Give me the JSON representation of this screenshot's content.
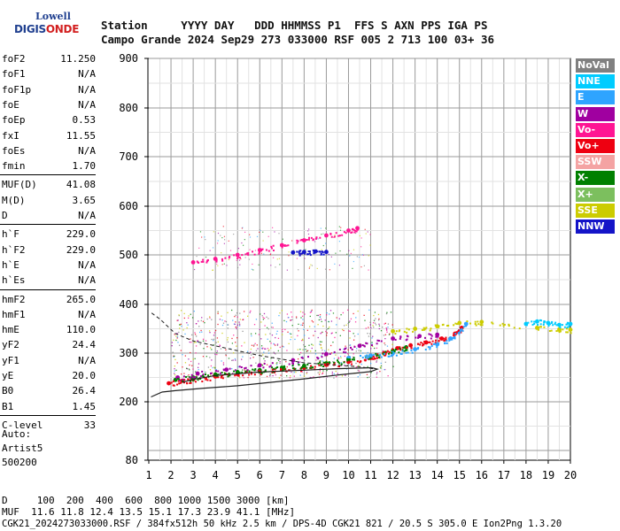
{
  "logo": {
    "top": "Lowell",
    "main_a": "DIGIS",
    "main_b": "ONDE"
  },
  "header": {
    "row1": "Station     YYYY DAY   DDD HHMMSS P1  FFS S AXN PPS IGA PS",
    "row2": "Campo Grande 2024 Sep29 273 033000 RSF 005 2 713 100 03+ 36"
  },
  "params": [
    {
      "label": "foF2",
      "value": "11.250"
    },
    {
      "label": "foF1",
      "value": "N/A"
    },
    {
      "label": "foF1p",
      "value": "N/A"
    },
    {
      "label": "foE",
      "value": "N/A"
    },
    {
      "label": "foEp",
      "value": "0.53"
    },
    {
      "label": "fxI",
      "value": "11.55"
    },
    {
      "label": "foEs",
      "value": "N/A"
    },
    {
      "label": "fmin",
      "value": "1.70"
    },
    {
      "label": "MUF(D)",
      "value": "41.08"
    },
    {
      "label": "M(D)",
      "value": "3.65"
    },
    {
      "label": "D",
      "value": "N/A"
    },
    {
      "label": "h`F",
      "value": "229.0"
    },
    {
      "label": "h`F2",
      "value": "229.0"
    },
    {
      "label": "h`E",
      "value": "N/A"
    },
    {
      "label": "h`Es",
      "value": "N/A"
    },
    {
      "label": "hmF2",
      "value": "265.0"
    },
    {
      "label": "hmF1",
      "value": "N/A"
    },
    {
      "label": "hmE",
      "value": "110.0"
    },
    {
      "label": "yF2",
      "value": "24.4"
    },
    {
      "label": "yF1",
      "value": "N/A"
    },
    {
      "label": "yE",
      "value": "20.0"
    },
    {
      "label": "B0",
      "value": "26.4"
    },
    {
      "label": "B1",
      "value": "1.45"
    },
    {
      "label": "C-level",
      "value": "33"
    }
  ],
  "autoscale": {
    "line1": "Auto:",
    "line2": "Artist5",
    "line3": "500200"
  },
  "legend": [
    {
      "label": "NoVal",
      "color": "#808080"
    },
    {
      "label": "NNE",
      "color": "#00ccff"
    },
    {
      "label": "E",
      "color": "#2ea4ff"
    },
    {
      "label": "W",
      "color": "#a000a0"
    },
    {
      "label": "Vo-",
      "color": "#ff1493"
    },
    {
      "label": "Vo+",
      "color": "#ee0011"
    },
    {
      "label": "SSW",
      "color": "#f4a3a3"
    },
    {
      "label": "X-",
      "color": "#008000"
    },
    {
      "label": "X+",
      "color": "#7cbf5e"
    },
    {
      "label": "SSE",
      "color": "#cccc00"
    },
    {
      "label": "NNW",
      "color": "#1414c8"
    }
  ],
  "footer": {
    "line1": "D     100  200  400  600  800 1000 1500 3000 [km]",
    "line2": "MUF  11.6 11.8 12.4 13.5 15.1 17.3 23.9 41.1 [MHz]",
    "line3": "CGK21_2024273033000.RSF / 384fx512h 50 kHz 2.5 km / DPS-4D CGK21 821 / 20.5 S 305.0 E Ion2Png 1.3.20"
  },
  "chart_data": {
    "type": "scatter",
    "xlim": [
      1,
      20
    ],
    "ylim": [
      80,
      900
    ],
    "x_ticks": [
      "1",
      "2",
      "3",
      "4",
      "5",
      "6",
      "7",
      "8",
      "9",
      "10",
      "11",
      "12",
      "13",
      "14",
      "15",
      "16",
      "17",
      "18",
      "19",
      "20"
    ],
    "y_ticks": [
      "80",
      "200",
      "300",
      "400",
      "500",
      "600",
      "700",
      "800",
      "900"
    ],
    "y_tick_values": [
      80,
      200,
      300,
      400,
      500,
      600,
      700,
      800,
      900
    ],
    "grid": true,
    "traces": [
      {
        "name": "Vo+",
        "color": "#ee0011",
        "points": [
          [
            1.9,
            238
          ],
          [
            2.5,
            243
          ],
          [
            3,
            246
          ],
          [
            4,
            252
          ],
          [
            5,
            257
          ],
          [
            6,
            262
          ],
          [
            7,
            266
          ],
          [
            8,
            270
          ],
          [
            9,
            276
          ],
          [
            10,
            282
          ],
          [
            11,
            290
          ],
          [
            11.6,
            300
          ],
          [
            12.2,
            310
          ],
          [
            12.8,
            316
          ],
          [
            13.5,
            322
          ],
          [
            14.2,
            330
          ],
          [
            14.8,
            340
          ],
          [
            15.1,
            352
          ]
        ]
      },
      {
        "name": "X-",
        "color": "#008000",
        "points": [
          [
            2.2,
            245
          ],
          [
            3,
            250
          ],
          [
            4,
            256
          ],
          [
            5,
            261
          ],
          [
            6,
            265
          ],
          [
            7,
            270
          ],
          [
            8,
            274
          ],
          [
            9,
            279
          ],
          [
            10,
            286
          ],
          [
            11,
            294
          ],
          [
            12,
            305
          ],
          [
            12.6,
            312
          ]
        ]
      },
      {
        "name": "W",
        "color": "#a000a0",
        "points": [
          [
            2.3,
            250
          ],
          [
            3.2,
            258
          ],
          [
            4.5,
            266
          ],
          [
            6,
            275
          ],
          [
            7.5,
            285
          ],
          [
            9,
            298
          ],
          [
            10.5,
            315
          ],
          [
            12,
            330
          ],
          [
            13.2,
            335
          ],
          [
            14,
            338
          ]
        ]
      },
      {
        "name": "E",
        "color": "#2ea4ff",
        "points": [
          [
            10,
            290
          ],
          [
            11,
            295
          ],
          [
            12,
            300
          ],
          [
            13,
            308
          ],
          [
            14,
            318
          ],
          [
            14.6,
            330
          ],
          [
            15,
            345
          ],
          [
            15.3,
            360
          ]
        ]
      },
      {
        "name": "SSE",
        "color": "#cccc00",
        "points": [
          [
            12,
            345
          ],
          [
            13,
            350
          ],
          [
            14,
            355
          ],
          [
            15,
            362
          ],
          [
            16,
            364
          ],
          [
            18.5,
            352
          ],
          [
            19.5,
            349
          ],
          [
            20,
            348
          ]
        ]
      },
      {
        "name": "NNE",
        "color": "#00ccff",
        "points": [
          [
            18,
            360
          ],
          [
            18.5,
            365
          ],
          [
            19,
            362
          ],
          [
            19.5,
            358
          ],
          [
            20,
            360
          ]
        ]
      },
      {
        "name": "Vo-",
        "color": "#ff1493",
        "points": [
          [
            3,
            485
          ],
          [
            4,
            492
          ],
          [
            5,
            500
          ],
          [
            6,
            510
          ],
          [
            7,
            520
          ],
          [
            8,
            530
          ],
          [
            9,
            540
          ],
          [
            10,
            550
          ],
          [
            10.4,
            555
          ]
        ]
      },
      {
        "name": "NNW",
        "color": "#1414c8",
        "points": [
          [
            7.5,
            505
          ],
          [
            8,
            506
          ],
          [
            8.5,
            507
          ],
          [
            9,
            506
          ]
        ]
      }
    ],
    "profile_line": [
      [
        1.1,
        210
      ],
      [
        1.6,
        220
      ],
      [
        2.2,
        223
      ],
      [
        3.5,
        228
      ],
      [
        5,
        233
      ],
      [
        6.5,
        240
      ],
      [
        8,
        247
      ],
      [
        9.5,
        255
      ],
      [
        11,
        262
      ],
      [
        11.3,
        267
      ],
      [
        11.05,
        270
      ],
      [
        9.5,
        268
      ],
      [
        8,
        265
      ],
      [
        6,
        261
      ],
      [
        4,
        254
      ],
      [
        3,
        246
      ],
      [
        2.5,
        240
      ]
    ],
    "profile_dashed": [
      [
        11.1,
        268
      ],
      [
        10.5,
        272
      ],
      [
        8,
        280
      ],
      [
        6,
        295
      ],
      [
        4,
        315
      ],
      [
        3,
        325
      ],
      [
        2.2,
        340
      ],
      [
        1.5,
        370
      ],
      [
        1.05,
        385
      ]
    ]
  }
}
